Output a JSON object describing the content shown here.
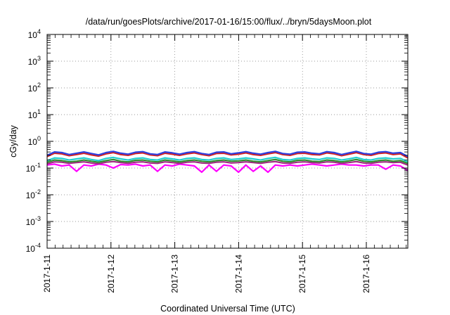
{
  "chart_data": {
    "type": "line",
    "title": "/data/run/goesPlots/archive/2017-01-16/15:00/flux/../bryn/5daysMoon.plot",
    "xlabel": "Coordinated Universal Time (UTC)",
    "ylabel": "cGy/day",
    "yscale": "log",
    "ylim": [
      0.0001,
      10000
    ],
    "xlim": [
      "2017-01-11 00:00",
      "2017-01-16 15:00"
    ],
    "grid": "dotted",
    "x_ticks": [
      "2017-1-11",
      "2017-1-12",
      "2017-1-13",
      "2017-1-14",
      "2017-1-15",
      "2017-1-16"
    ],
    "y_ticks": [
      {
        "base": "10",
        "exp": "-4",
        "value": 0.0001
      },
      {
        "base": "10",
        "exp": "-3",
        "value": 0.001
      },
      {
        "base": "10",
        "exp": "-2",
        "value": 0.01
      },
      {
        "base": "10",
        "exp": "-1",
        "value": 0.1
      },
      {
        "base": "10",
        "exp": "0",
        "value": 1
      },
      {
        "base": "10",
        "exp": "1",
        "value": 10
      },
      {
        "base": "10",
        "exp": "2",
        "value": 100
      },
      {
        "base": "10",
        "exp": "3",
        "value": 1000
      },
      {
        "base": "10",
        "exp": "4",
        "value": 10000
      }
    ],
    "series": [
      {
        "color": "#2d3fe0",
        "values": [
          0.3,
          0.4,
          0.38,
          0.32,
          0.36,
          0.4,
          0.35,
          0.31,
          0.38,
          0.42,
          0.36,
          0.33,
          0.39,
          0.41,
          0.34,
          0.32,
          0.4,
          0.37,
          0.33,
          0.38,
          0.41,
          0.35,
          0.32,
          0.39,
          0.4,
          0.34,
          0.37,
          0.41,
          0.36,
          0.33,
          0.38,
          0.42,
          0.35,
          0.33,
          0.39,
          0.4,
          0.36,
          0.34,
          0.41,
          0.38,
          0.32,
          0.37,
          0.42,
          0.35,
          0.33,
          0.39,
          0.41,
          0.36,
          0.38,
          0.27
        ]
      },
      {
        "color": "#d42020",
        "values": [
          0.27,
          0.36,
          0.34,
          0.29,
          0.32,
          0.36,
          0.31,
          0.28,
          0.34,
          0.38,
          0.32,
          0.3,
          0.35,
          0.37,
          0.31,
          0.29,
          0.36,
          0.33,
          0.3,
          0.34,
          0.37,
          0.32,
          0.29,
          0.35,
          0.36,
          0.31,
          0.33,
          0.37,
          0.32,
          0.3,
          0.34,
          0.38,
          0.32,
          0.3,
          0.35,
          0.36,
          0.32,
          0.31,
          0.37,
          0.34,
          0.29,
          0.33,
          0.38,
          0.32,
          0.3,
          0.35,
          0.37,
          0.32,
          0.34,
          0.24
        ]
      },
      {
        "color": "#20cfcf",
        "values": [
          0.19,
          0.24,
          0.23,
          0.2,
          0.22,
          0.24,
          0.21,
          0.19,
          0.23,
          0.25,
          0.22,
          0.2,
          0.23,
          0.24,
          0.21,
          0.2,
          0.24,
          0.22,
          0.2,
          0.23,
          0.24,
          0.21,
          0.2,
          0.23,
          0.24,
          0.21,
          0.22,
          0.24,
          0.22,
          0.2,
          0.23,
          0.25,
          0.21,
          0.2,
          0.23,
          0.24,
          0.22,
          0.21,
          0.24,
          0.23,
          0.2,
          0.22,
          0.25,
          0.21,
          0.2,
          0.23,
          0.24,
          0.22,
          0.23,
          0.17
        ]
      },
      {
        "color": "#2f8f2f",
        "values": [
          0.165,
          0.2,
          0.19,
          0.17,
          0.18,
          0.2,
          0.18,
          0.165,
          0.19,
          0.21,
          0.18,
          0.17,
          0.195,
          0.2,
          0.18,
          0.17,
          0.2,
          0.185,
          0.17,
          0.19,
          0.2,
          0.18,
          0.17,
          0.19,
          0.2,
          0.18,
          0.185,
          0.2,
          0.18,
          0.17,
          0.19,
          0.21,
          0.18,
          0.17,
          0.195,
          0.2,
          0.18,
          0.175,
          0.2,
          0.19,
          0.17,
          0.185,
          0.21,
          0.18,
          0.17,
          0.19,
          0.2,
          0.18,
          0.19,
          0.15
        ]
      },
      {
        "color": "#a02a80",
        "values": [
          0.145,
          0.17,
          0.165,
          0.15,
          0.16,
          0.17,
          0.155,
          0.145,
          0.165,
          0.175,
          0.16,
          0.15,
          0.165,
          0.17,
          0.155,
          0.15,
          0.17,
          0.16,
          0.15,
          0.165,
          0.17,
          0.155,
          0.15,
          0.165,
          0.17,
          0.155,
          0.16,
          0.17,
          0.16,
          0.15,
          0.165,
          0.175,
          0.155,
          0.15,
          0.165,
          0.17,
          0.16,
          0.155,
          0.17,
          0.165,
          0.15,
          0.16,
          0.175,
          0.155,
          0.15,
          0.165,
          0.17,
          0.16,
          0.165,
          0.13
        ]
      },
      {
        "color": "#ff00ff",
        "values": [
          0.13,
          0.14,
          0.12,
          0.13,
          0.075,
          0.13,
          0.12,
          0.14,
          0.13,
          0.1,
          0.135,
          0.13,
          0.14,
          0.12,
          0.13,
          0.075,
          0.13,
          0.12,
          0.14,
          0.13,
          0.12,
          0.07,
          0.13,
          0.075,
          0.13,
          0.12,
          0.07,
          0.13,
          0.075,
          0.12,
          0.07,
          0.13,
          0.12,
          0.13,
          0.12,
          0.13,
          0.14,
          0.13,
          0.12,
          0.13,
          0.14,
          0.13,
          0.13,
          0.12,
          0.13,
          0.13,
          0.09,
          0.13,
          0.12,
          0.08
        ]
      }
    ]
  }
}
